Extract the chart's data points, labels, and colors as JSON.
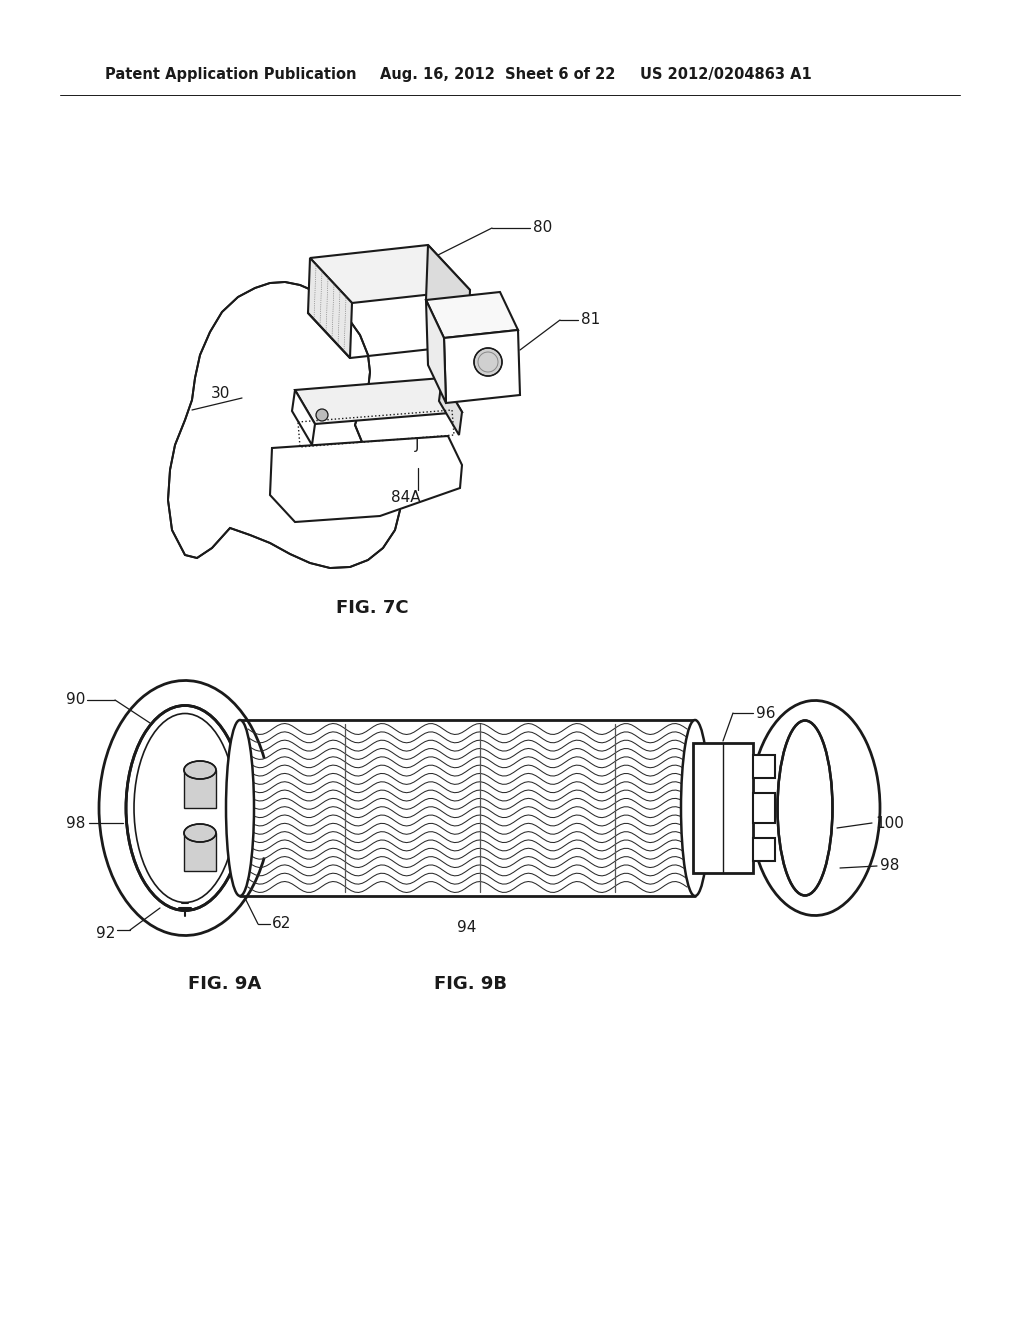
{
  "bg_color": "#ffffff",
  "header_text1": "Patent Application Publication",
  "header_text2": "Aug. 16, 2012  Sheet 6 of 22",
  "header_text3": "US 2012/0204863 A1",
  "line_color": "#1a1a1a",
  "line_width": 1.5
}
